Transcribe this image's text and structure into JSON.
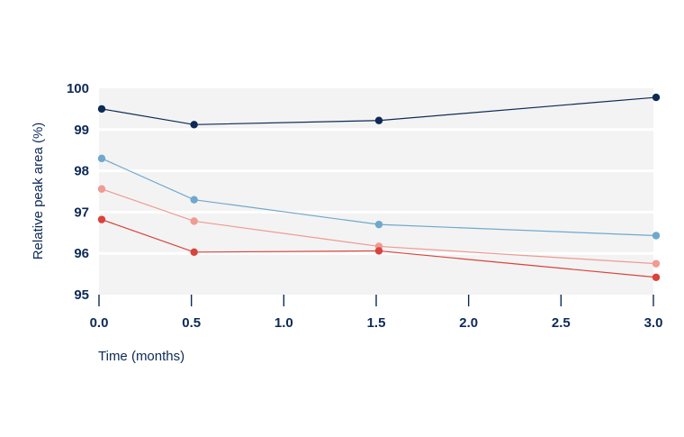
{
  "chart_data": {
    "type": "line",
    "title": "",
    "xlabel": "Time (months)",
    "ylabel": "Relative peak area (%)",
    "xlim": [
      0,
      3
    ],
    "ylim": [
      95,
      100
    ],
    "x_ticks": [
      "0.0",
      "0.5",
      "1.0",
      "1.5",
      "2.0",
      "2.5",
      "3.0"
    ],
    "x_tick_values": [
      0,
      0.5,
      1.0,
      1.5,
      2.0,
      2.5,
      3.0
    ],
    "y_ticks": [
      "95",
      "96",
      "97",
      "98",
      "99",
      "100"
    ],
    "y_tick_values": [
      95,
      96,
      97,
      98,
      99,
      100
    ],
    "x": [
      0,
      0.5,
      1.5,
      3.0
    ],
    "grid": true,
    "background": "#f3f3f3",
    "series": [
      {
        "color": "#0d2a57",
        "values": [
          99.5,
          99.12,
          99.22,
          99.78
        ]
      },
      {
        "color": "#6fa8cd",
        "values": [
          98.3,
          97.3,
          96.7,
          96.43
        ]
      },
      {
        "color": "#ef9a93",
        "values": [
          97.56,
          96.78,
          96.17,
          95.75
        ]
      },
      {
        "color": "#d9433b",
        "values": [
          96.82,
          96.03,
          96.06,
          95.42
        ]
      }
    ]
  }
}
